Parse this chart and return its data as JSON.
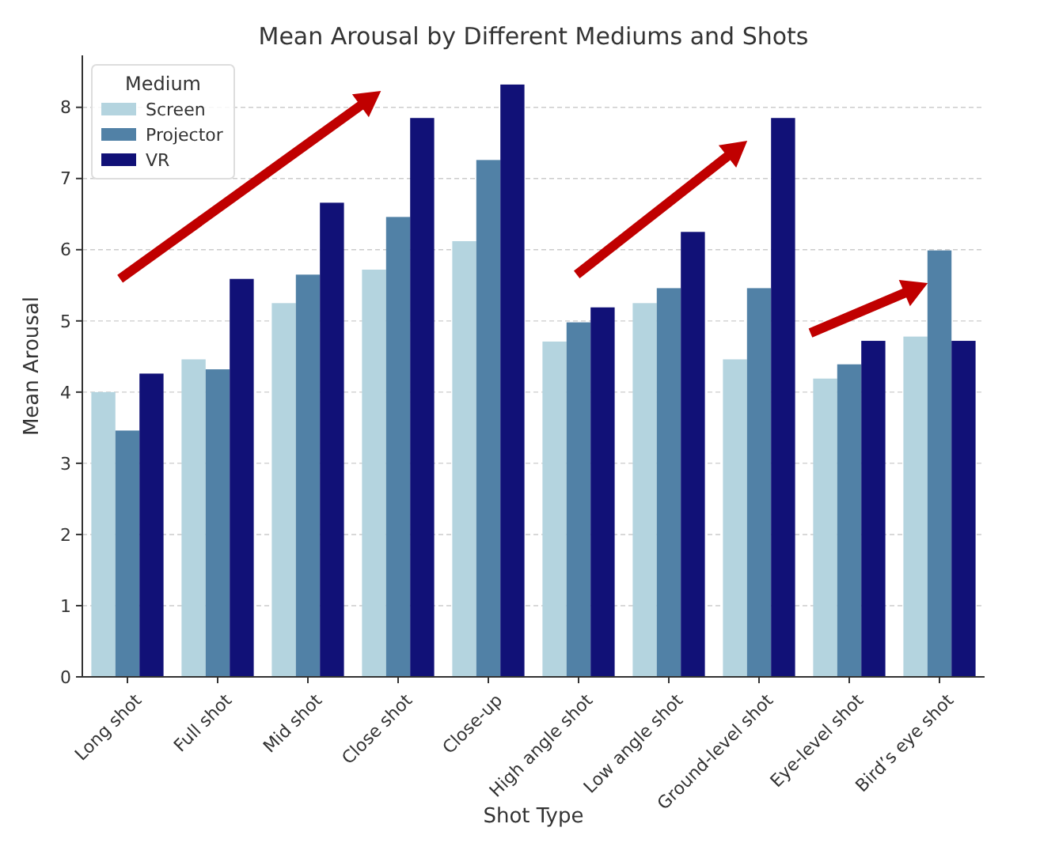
{
  "chart_data": {
    "type": "bar",
    "title": "Mean Arousal by Different Mediums and Shots",
    "xlabel": "Shot Type",
    "ylabel": "Mean Arousal",
    "legend_title": "Medium",
    "categories": [
      "Long shot",
      "Full shot",
      "Mid shot",
      "Close shot",
      "Close-up",
      "High angle shot",
      "Low angle shot",
      "Ground-level shot",
      "Eye-level shot",
      "Bird’s eye shot"
    ],
    "series": [
      {
        "name": "Screen",
        "color": "#b4d4df",
        "values": [
          4.0,
          4.46,
          5.25,
          5.72,
          6.12,
          4.71,
          5.25,
          4.46,
          4.19,
          4.78
        ]
      },
      {
        "name": "Projector",
        "color": "#5181a6",
        "values": [
          3.46,
          4.32,
          5.65,
          6.46,
          7.26,
          4.98,
          5.46,
          5.46,
          4.39,
          5.99
        ]
      },
      {
        "name": "VR",
        "color": "#111177",
        "values": [
          4.26,
          5.59,
          6.66,
          7.85,
          8.32,
          5.19,
          6.25,
          7.85,
          4.72,
          4.72
        ]
      }
    ],
    "ylim": [
      0,
      8.73
    ],
    "yticks": [
      0,
      1,
      2,
      3,
      4,
      5,
      6,
      7,
      8
    ],
    "grid": "y",
    "legend": "top left"
  }
}
